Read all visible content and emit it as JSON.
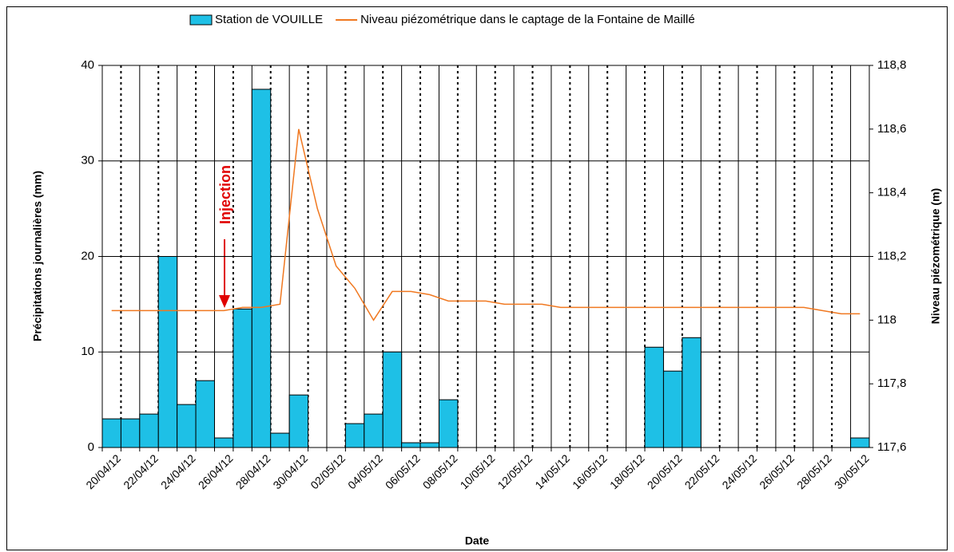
{
  "chart_data": {
    "type": "bar",
    "x_label": "Date",
    "y_label": "Précipitations journalières (mm)",
    "y2_label": "Niveau piézométrique (m)",
    "annotation": "Injection",
    "categories": [
      "20/04/12",
      null,
      "22/04/12",
      null,
      "24/04/12",
      null,
      "26/04/12",
      null,
      "28/04/12",
      null,
      "30/04/12",
      null,
      "02/05/12",
      null,
      "04/05/12",
      null,
      "06/05/12",
      null,
      "08/05/12",
      null,
      "10/05/12",
      null,
      "12/05/12",
      null,
      "14/05/12",
      null,
      "16/05/12",
      null,
      "18/05/12",
      null,
      "20/05/12",
      null,
      "22/05/12",
      null,
      "24/05/12",
      null,
      "26/05/12",
      null,
      "28/05/12",
      null,
      "30/05/12"
    ],
    "series": [
      {
        "name": "Station de VOUILLE",
        "type": "bar",
        "color": "#1ec0e6",
        "values": [
          3,
          3,
          3.5,
          20,
          4.5,
          7,
          1,
          14.5,
          37.5,
          1.5,
          5.5,
          0,
          0,
          2.5,
          3.5,
          10,
          0.5,
          0.5,
          5,
          0,
          0,
          0,
          0,
          0,
          0,
          0,
          0,
          0,
          0,
          10.5,
          8,
          11.5,
          0,
          0,
          0,
          0,
          0,
          0,
          0,
          0,
          1
        ]
      },
      {
        "name": "Niveau piézométrique dans le captage de la Fontaine de Maillé",
        "type": "line",
        "axis": "y2",
        "color": "#f07820",
        "values": [
          118.03,
          118.03,
          118.03,
          118.03,
          118.03,
          118.03,
          118.03,
          118.04,
          118.04,
          118.05,
          118.6,
          118.35,
          118.17,
          118.1,
          118.0,
          118.09,
          118.09,
          118.08,
          118.06,
          118.06,
          118.06,
          118.05,
          118.05,
          118.05,
          118.04,
          118.04,
          118.04,
          118.04,
          118.04,
          118.04,
          118.04,
          118.04,
          118.04,
          118.04,
          118.04,
          118.04,
          118.04,
          118.04,
          118.03,
          118.02,
          118.02
        ]
      }
    ],
    "ylim": [
      0,
      40
    ],
    "yticks": [
      0,
      10,
      20,
      30,
      40
    ],
    "y2lim": [
      117.6,
      118.8
    ],
    "y2ticks": [
      {
        "value": 117.6,
        "label": "117,6"
      },
      {
        "value": 117.8,
        "label": "117,8"
      },
      {
        "value": 118,
        "label": "118"
      },
      {
        "value": 118.2,
        "label": "118,2"
      },
      {
        "value": 118.4,
        "label": "118,4"
      },
      {
        "value": 118.6,
        "label": "118,6"
      },
      {
        "value": 118.8,
        "label": "118,8"
      }
    ],
    "grid": true,
    "legend": "top"
  }
}
